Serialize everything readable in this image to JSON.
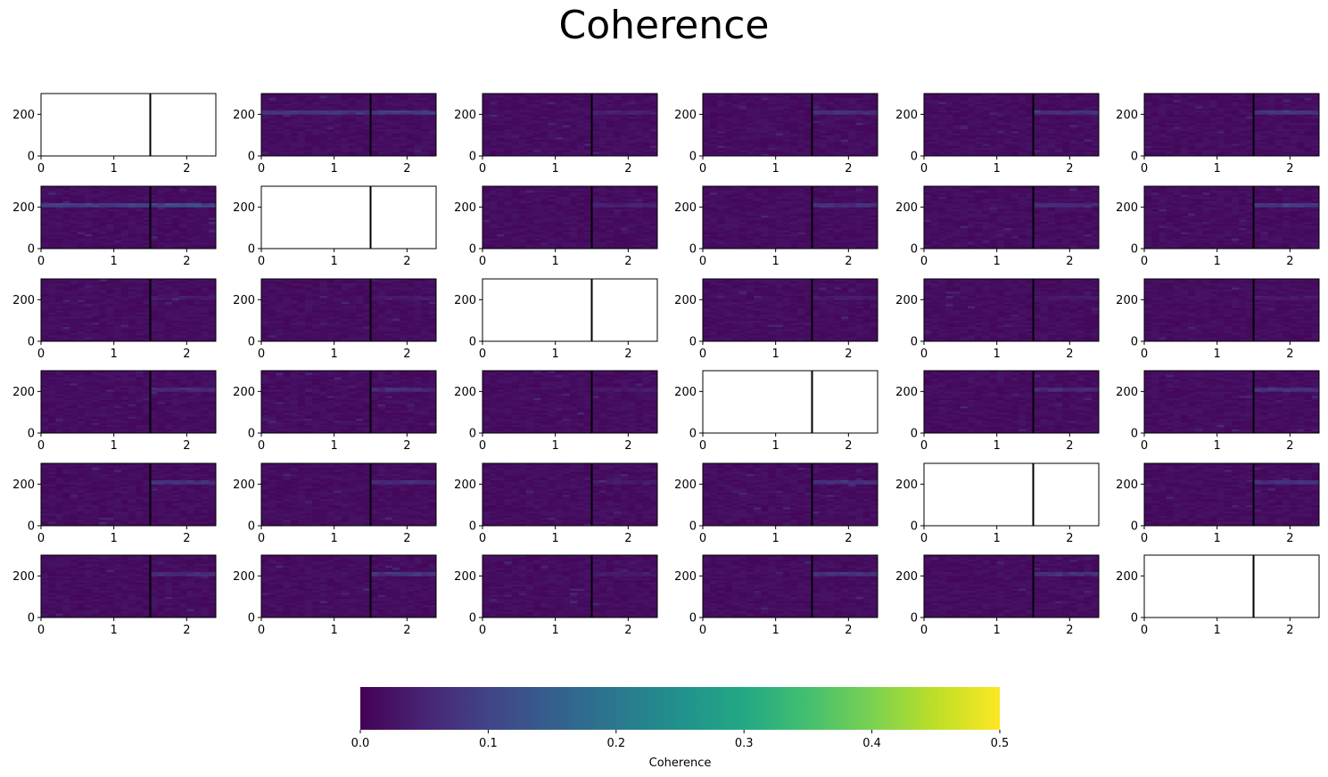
{
  "chart_data": {
    "type": "heatmap",
    "title": "Coherence",
    "grid": {
      "rows": 6,
      "cols": 6
    },
    "panel": {
      "xlim": [
        0,
        2.4
      ],
      "ylim": [
        0,
        300
      ],
      "xticks": [
        0,
        1,
        2
      ],
      "xtick_labels": [
        "0",
        "1",
        "2"
      ],
      "yticks": [
        0,
        200
      ],
      "ytick_labels": [
        "0",
        "200"
      ],
      "divider_x": 1.5,
      "divider_color": "#000000",
      "time_bins": 24,
      "freq_bins": 30,
      "band_center": 210,
      "band_width": 15,
      "diagonal_panels": "blank (white)"
    },
    "panels": [
      [
        0,
        0.08,
        0.03,
        0.06,
        0.05,
        0.07
      ],
      [
        0.1,
        0,
        0.03,
        0.06,
        0.05,
        0.08
      ],
      [
        0.02,
        0.02,
        0,
        0.02,
        0.02,
        0.02
      ],
      [
        0.05,
        0.05,
        0.02,
        0,
        0.05,
        0.06
      ],
      [
        0.06,
        0.05,
        0.02,
        0.06,
        0,
        0.06
      ],
      [
        0.05,
        0.07,
        0.02,
        0.06,
        0.06,
        0
      ]
    ],
    "band_pre_strength": [
      [
        0,
        1,
        0,
        0,
        0,
        0
      ],
      [
        1,
        0,
        0,
        0,
        0,
        0
      ],
      [
        0,
        0,
        0,
        0,
        0,
        0
      ],
      [
        0,
        0,
        0,
        0,
        0,
        0
      ],
      [
        0,
        0,
        0,
        0,
        0,
        0
      ],
      [
        0,
        0,
        0,
        0,
        0,
        0
      ]
    ],
    "colorbar": {
      "label": "Coherence",
      "range": [
        0,
        0.5
      ],
      "ticks": [
        0.0,
        0.1,
        0.2,
        0.3,
        0.4,
        0.5
      ],
      "tick_labels": [
        "0.0",
        "0.1",
        "0.2",
        "0.3",
        "0.4",
        "0.5"
      ],
      "colormap": "viridis",
      "orientation": "horizontal",
      "placement": "bottom-center"
    }
  }
}
